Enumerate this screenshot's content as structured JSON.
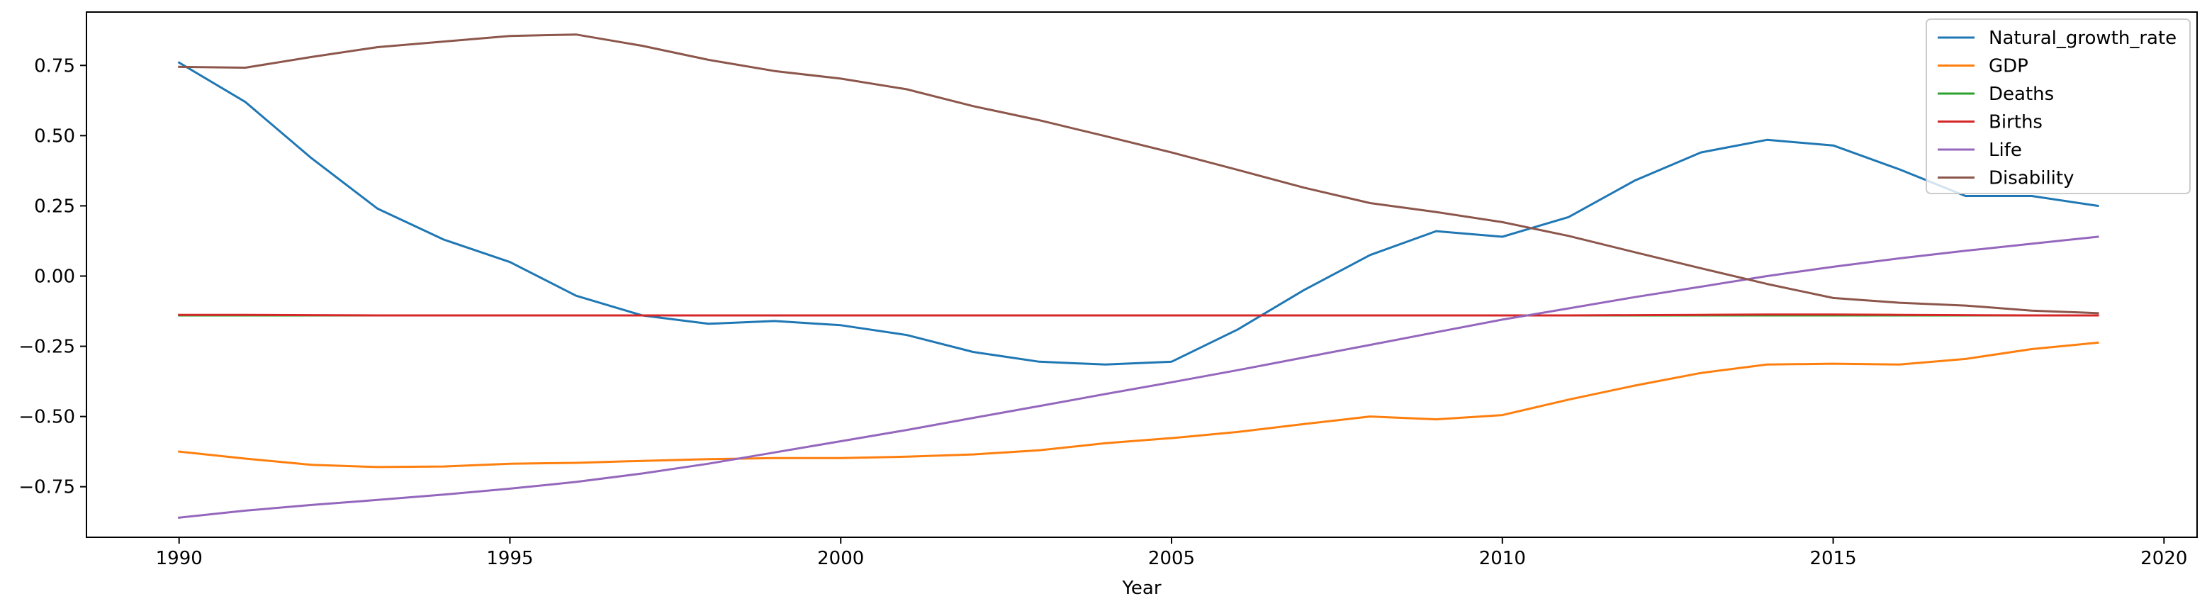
{
  "chart_data": {
    "type": "line",
    "xlabel": "Year",
    "ylabel": "",
    "xlim": [
      1988.6,
      2020.5
    ],
    "ylim": [
      -0.93,
      0.94
    ],
    "xticks": [
      1990,
      1995,
      2000,
      2005,
      2010,
      2015,
      2020
    ],
    "yticks": [
      -0.75,
      -0.5,
      -0.25,
      0.0,
      0.25,
      0.5,
      0.75
    ],
    "xtick_labels": [
      "1990",
      "1995",
      "2000",
      "2005",
      "2010",
      "2015",
      "2020"
    ],
    "ytick_labels": [
      "−0.75",
      "−0.50",
      "−0.25",
      "0.00",
      "0.25",
      "0.50",
      "0.75"
    ],
    "grid": false,
    "legend_position": "top-right",
    "x": [
      1990,
      1991,
      1992,
      1993,
      1994,
      1995,
      1996,
      1997,
      1998,
      1999,
      2000,
      2001,
      2002,
      2003,
      2004,
      2005,
      2006,
      2007,
      2008,
      2009,
      2010,
      2011,
      2012,
      2013,
      2014,
      2015,
      2016,
      2017,
      2018,
      2019
    ],
    "series": [
      {
        "name": "Natural_growth_rate",
        "color": "#1f77b4",
        "values": [
          0.76,
          0.62,
          0.42,
          0.24,
          0.13,
          0.05,
          -0.07,
          -0.14,
          -0.17,
          -0.16,
          -0.175,
          -0.21,
          -0.27,
          -0.305,
          -0.315,
          -0.305,
          -0.19,
          -0.05,
          0.075,
          0.16,
          0.14,
          0.21,
          0.34,
          0.44,
          0.485,
          0.465,
          0.38,
          0.285,
          0.285,
          0.25
        ]
      },
      {
        "name": "GDP",
        "color": "#ff7f0e",
        "values": [
          -0.625,
          -0.65,
          -0.672,
          -0.68,
          -0.678,
          -0.668,
          -0.665,
          -0.658,
          -0.652,
          -0.648,
          -0.648,
          -0.643,
          -0.635,
          -0.62,
          -0.595,
          -0.577,
          -0.555,
          -0.527,
          -0.5,
          -0.51,
          -0.495,
          -0.44,
          -0.39,
          -0.345,
          -0.315,
          -0.312,
          -0.315,
          -0.295,
          -0.26,
          -0.237
        ]
      },
      {
        "name": "Deaths",
        "color": "#2ca02c",
        "values": [
          -0.14,
          -0.14,
          -0.14,
          -0.14,
          -0.14,
          -0.14,
          -0.14,
          -0.14,
          -0.14,
          -0.14,
          -0.14,
          -0.14,
          -0.14,
          -0.14,
          -0.14,
          -0.14,
          -0.14,
          -0.14,
          -0.14,
          -0.14,
          -0.14,
          -0.14,
          -0.14,
          -0.14,
          -0.14,
          -0.14,
          -0.14,
          -0.14,
          -0.14,
          -0.14
        ]
      },
      {
        "name": "Births",
        "color": "#d62728",
        "values": [
          -0.138,
          -0.138,
          -0.139,
          -0.14,
          -0.14,
          -0.14,
          -0.14,
          -0.14,
          -0.14,
          -0.14,
          -0.14,
          -0.14,
          -0.14,
          -0.14,
          -0.14,
          -0.14,
          -0.14,
          -0.14,
          -0.14,
          -0.14,
          -0.14,
          -0.14,
          -0.139,
          -0.138,
          -0.137,
          -0.137,
          -0.138,
          -0.139,
          -0.14,
          -0.14
        ]
      },
      {
        "name": "Life",
        "color": "#9467bd",
        "values": [
          -0.86,
          -0.835,
          -0.815,
          -0.797,
          -0.778,
          -0.757,
          -0.733,
          -0.703,
          -0.668,
          -0.628,
          -0.588,
          -0.548,
          -0.505,
          -0.463,
          -0.42,
          -0.378,
          -0.335,
          -0.29,
          -0.245,
          -0.2,
          -0.155,
          -0.115,
          -0.075,
          -0.038,
          0.0,
          0.033,
          0.063,
          0.09,
          0.115,
          0.14
        ]
      },
      {
        "name": "Disability",
        "color": "#8c564b",
        "values": [
          0.745,
          0.742,
          0.78,
          0.815,
          0.835,
          0.855,
          0.86,
          0.82,
          0.77,
          0.73,
          0.703,
          0.665,
          0.605,
          0.555,
          0.498,
          0.44,
          0.378,
          0.315,
          0.26,
          0.228,
          0.192,
          0.143,
          0.085,
          0.028,
          -0.028,
          -0.078,
          -0.095,
          -0.105,
          -0.123,
          -0.132
        ]
      }
    ]
  }
}
